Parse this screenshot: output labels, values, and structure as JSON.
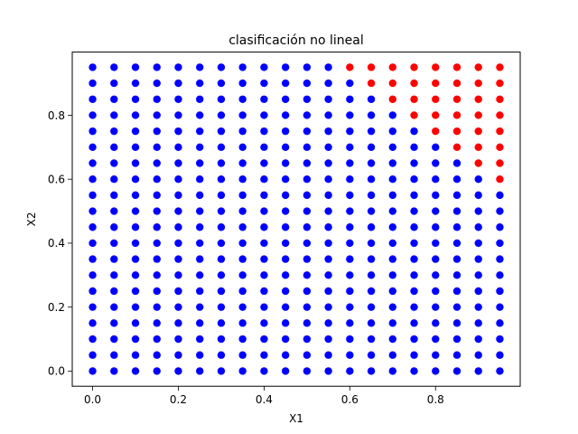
{
  "chart_data": {
    "type": "scatter",
    "title": "clasificación no lineal",
    "xlabel": "X1",
    "ylabel": "X2",
    "xlim": [
      -0.0475,
      0.9975
    ],
    "ylim": [
      -0.0475,
      0.9975
    ],
    "xticks": [
      0.0,
      0.2,
      0.4,
      0.6,
      0.8
    ],
    "yticks": [
      0.0,
      0.2,
      0.4,
      0.6,
      0.8
    ],
    "xtick_labels": [
      "0.0",
      "0.2",
      "0.4",
      "0.6",
      "0.8"
    ],
    "ytick_labels": [
      "0.0",
      "0.2",
      "0.4",
      "0.6",
      "0.8"
    ],
    "grid": false,
    "legend": "none",
    "grid_values": [
      0.0,
      0.05,
      0.1,
      0.15,
      0.2,
      0.25,
      0.3,
      0.35,
      0.4,
      0.45,
      0.5,
      0.55,
      0.6,
      0.65,
      0.7,
      0.75,
      0.8,
      0.85,
      0.9,
      0.95
    ],
    "series": [
      {
        "color": "#0000ff",
        "rule": "all grid points not in the red set"
      },
      {
        "color": "#ff0000",
        "points": [
          [
            0.6,
            0.95
          ],
          [
            0.65,
            0.9
          ],
          [
            0.65,
            0.95
          ],
          [
            0.7,
            0.85
          ],
          [
            0.7,
            0.9
          ],
          [
            0.7,
            0.95
          ],
          [
            0.75,
            0.8
          ],
          [
            0.75,
            0.85
          ],
          [
            0.75,
            0.9
          ],
          [
            0.75,
            0.95
          ],
          [
            0.8,
            0.75
          ],
          [
            0.8,
            0.8
          ],
          [
            0.8,
            0.85
          ],
          [
            0.8,
            0.9
          ],
          [
            0.8,
            0.95
          ],
          [
            0.85,
            0.7
          ],
          [
            0.85,
            0.75
          ],
          [
            0.85,
            0.8
          ],
          [
            0.85,
            0.85
          ],
          [
            0.85,
            0.9
          ],
          [
            0.85,
            0.95
          ],
          [
            0.9,
            0.65
          ],
          [
            0.9,
            0.7
          ],
          [
            0.9,
            0.75
          ],
          [
            0.9,
            0.8
          ],
          [
            0.9,
            0.85
          ],
          [
            0.9,
            0.9
          ],
          [
            0.9,
            0.95
          ],
          [
            0.95,
            0.6
          ],
          [
            0.95,
            0.65
          ],
          [
            0.95,
            0.7
          ],
          [
            0.95,
            0.75
          ],
          [
            0.95,
            0.8
          ],
          [
            0.95,
            0.85
          ],
          [
            0.95,
            0.9
          ],
          [
            0.95,
            0.95
          ]
        ]
      }
    ]
  }
}
